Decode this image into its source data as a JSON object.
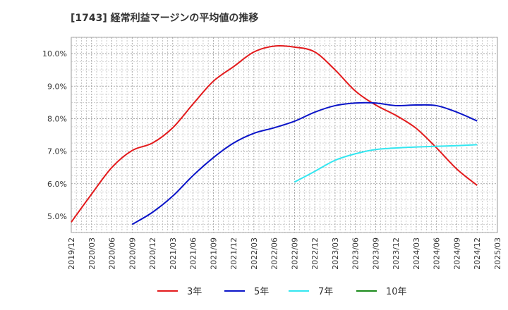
{
  "chart_data": {
    "type": "line",
    "title": "[1743]  経常利益マージンの平均値の推移",
    "xlabel": "",
    "ylabel": "",
    "x_ticks": [
      "2019/12",
      "2020/03",
      "2020/06",
      "2020/09",
      "2020/12",
      "2021/03",
      "2021/06",
      "2021/09",
      "2021/12",
      "2022/03",
      "2022/06",
      "2022/09",
      "2022/12",
      "2023/03",
      "2023/06",
      "2023/09",
      "2023/12",
      "2024/03",
      "2024/06",
      "2024/09",
      "2024/12",
      "2025/03"
    ],
    "y_ticks": [
      5.0,
      6.0,
      7.0,
      8.0,
      9.0,
      10.0
    ],
    "y_tick_labels": [
      "5.0%",
      "6.0%",
      "7.0%",
      "8.0%",
      "9.0%",
      "10.0%"
    ],
    "ylim": [
      4.5,
      10.5
    ],
    "grid": true,
    "legend_position": "bottom",
    "series": [
      {
        "name": "3年",
        "color": "#e31a1c",
        "x": [
          "2019/12",
          "2020/03",
          "2020/06",
          "2020/09",
          "2020/12",
          "2021/03",
          "2021/06",
          "2021/09",
          "2021/12",
          "2022/03",
          "2022/06",
          "2022/09",
          "2022/12",
          "2023/03",
          "2023/06",
          "2023/09",
          "2023/12",
          "2024/03",
          "2024/06",
          "2024/09",
          "2024/12"
        ],
        "values": [
          4.82,
          5.68,
          6.5,
          7.02,
          7.25,
          7.72,
          8.45,
          9.15,
          9.6,
          10.05,
          10.23,
          10.2,
          10.05,
          9.5,
          8.85,
          8.42,
          8.1,
          7.7,
          7.1,
          6.45,
          5.95
        ]
      },
      {
        "name": "5年",
        "color": "#0a14c8",
        "x": [
          "2020/09",
          "2020/12",
          "2021/03",
          "2021/06",
          "2021/09",
          "2021/12",
          "2022/03",
          "2022/06",
          "2022/09",
          "2022/12",
          "2023/03",
          "2023/06",
          "2023/09",
          "2023/12",
          "2024/03",
          "2024/06",
          "2024/09",
          "2024/12"
        ],
        "values": [
          4.75,
          5.12,
          5.62,
          6.25,
          6.8,
          7.25,
          7.55,
          7.72,
          7.92,
          8.2,
          8.4,
          8.48,
          8.48,
          8.4,
          8.42,
          8.4,
          8.2,
          7.93
        ]
      },
      {
        "name": "7年",
        "color": "#33e6f0",
        "x": [
          "2022/09",
          "2022/12",
          "2023/03",
          "2023/06",
          "2023/09",
          "2023/12",
          "2024/03",
          "2024/06",
          "2024/09",
          "2024/12"
        ],
        "values": [
          6.05,
          6.38,
          6.72,
          6.92,
          7.05,
          7.1,
          7.13,
          7.15,
          7.17,
          7.2
        ]
      },
      {
        "name": "10年",
        "color": "#1a8a1a",
        "x": [],
        "values": []
      }
    ]
  }
}
